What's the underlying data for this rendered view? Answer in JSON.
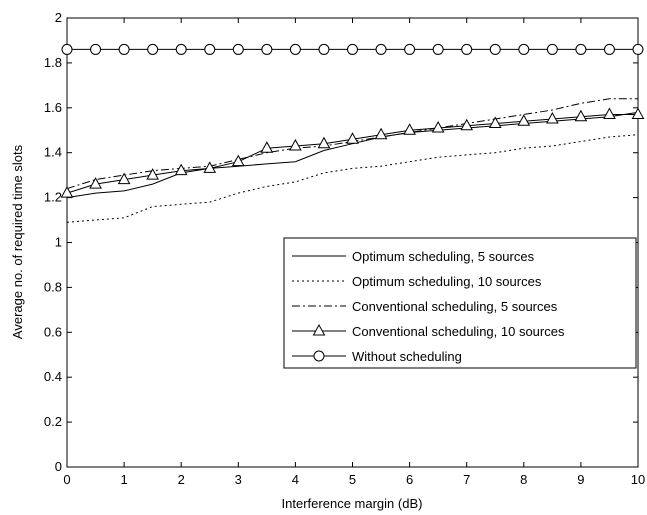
{
  "chart_data": {
    "type": "line",
    "title": "",
    "xlabel": "Interference margin (dB)",
    "ylabel": "Average no. of required time slots",
    "xlim": [
      0,
      10
    ],
    "ylim": [
      0,
      2
    ],
    "xticks": [
      "0",
      "1",
      "2",
      "3",
      "4",
      "5",
      "6",
      "7",
      "8",
      "9",
      "10"
    ],
    "yticks": [
      "0",
      "0.2",
      "0.4",
      "0.6",
      "0.8",
      "1",
      "1.2",
      "1.4",
      "1.6",
      "1.8",
      "2"
    ],
    "grid": false,
    "legend_position": "lower-right",
    "x": [
      0,
      0.5,
      1,
      1.5,
      2,
      2.5,
      3,
      3.5,
      4,
      4.5,
      5,
      5.5,
      6,
      6.5,
      7,
      7.5,
      8,
      8.5,
      9,
      9.5,
      10
    ],
    "series": [
      {
        "name": "Optimum scheduling, 5 sources",
        "style": "solid",
        "marker": "none",
        "color": "#000000",
        "values": [
          1.2,
          1.22,
          1.23,
          1.26,
          1.31,
          1.33,
          1.34,
          1.35,
          1.36,
          1.41,
          1.44,
          1.47,
          1.49,
          1.5,
          1.51,
          1.52,
          1.53,
          1.54,
          1.55,
          1.56,
          1.58
        ]
      },
      {
        "name": "Optimum scheduling, 10 sources",
        "style": "dotted",
        "marker": "none",
        "color": "#000000",
        "values": [
          1.09,
          1.1,
          1.11,
          1.16,
          1.17,
          1.18,
          1.22,
          1.25,
          1.27,
          1.31,
          1.33,
          1.34,
          1.36,
          1.38,
          1.39,
          1.4,
          1.42,
          1.43,
          1.45,
          1.47,
          1.48
        ]
      },
      {
        "name": "Conventional scheduling, 5 sources",
        "style": "dashdot",
        "marker": "none",
        "color": "#000000",
        "values": [
          1.24,
          1.28,
          1.3,
          1.32,
          1.33,
          1.34,
          1.37,
          1.4,
          1.42,
          1.43,
          1.45,
          1.47,
          1.49,
          1.51,
          1.53,
          1.55,
          1.57,
          1.59,
          1.62,
          1.64,
          1.64
        ]
      },
      {
        "name": "Conventional scheduling, 10 sources",
        "style": "solid",
        "marker": "triangle",
        "color": "#000000",
        "values": [
          1.22,
          1.26,
          1.28,
          1.3,
          1.32,
          1.33,
          1.36,
          1.42,
          1.43,
          1.44,
          1.46,
          1.48,
          1.5,
          1.51,
          1.52,
          1.53,
          1.54,
          1.55,
          1.56,
          1.57,
          1.57
        ]
      },
      {
        "name": "Without scheduling",
        "style": "solid",
        "marker": "circle",
        "color": "#000000",
        "values": [
          1.86,
          1.86,
          1.86,
          1.86,
          1.86,
          1.86,
          1.86,
          1.86,
          1.86,
          1.86,
          1.86,
          1.86,
          1.86,
          1.86,
          1.86,
          1.86,
          1.86,
          1.86,
          1.86,
          1.86,
          1.86
        ]
      }
    ]
  }
}
